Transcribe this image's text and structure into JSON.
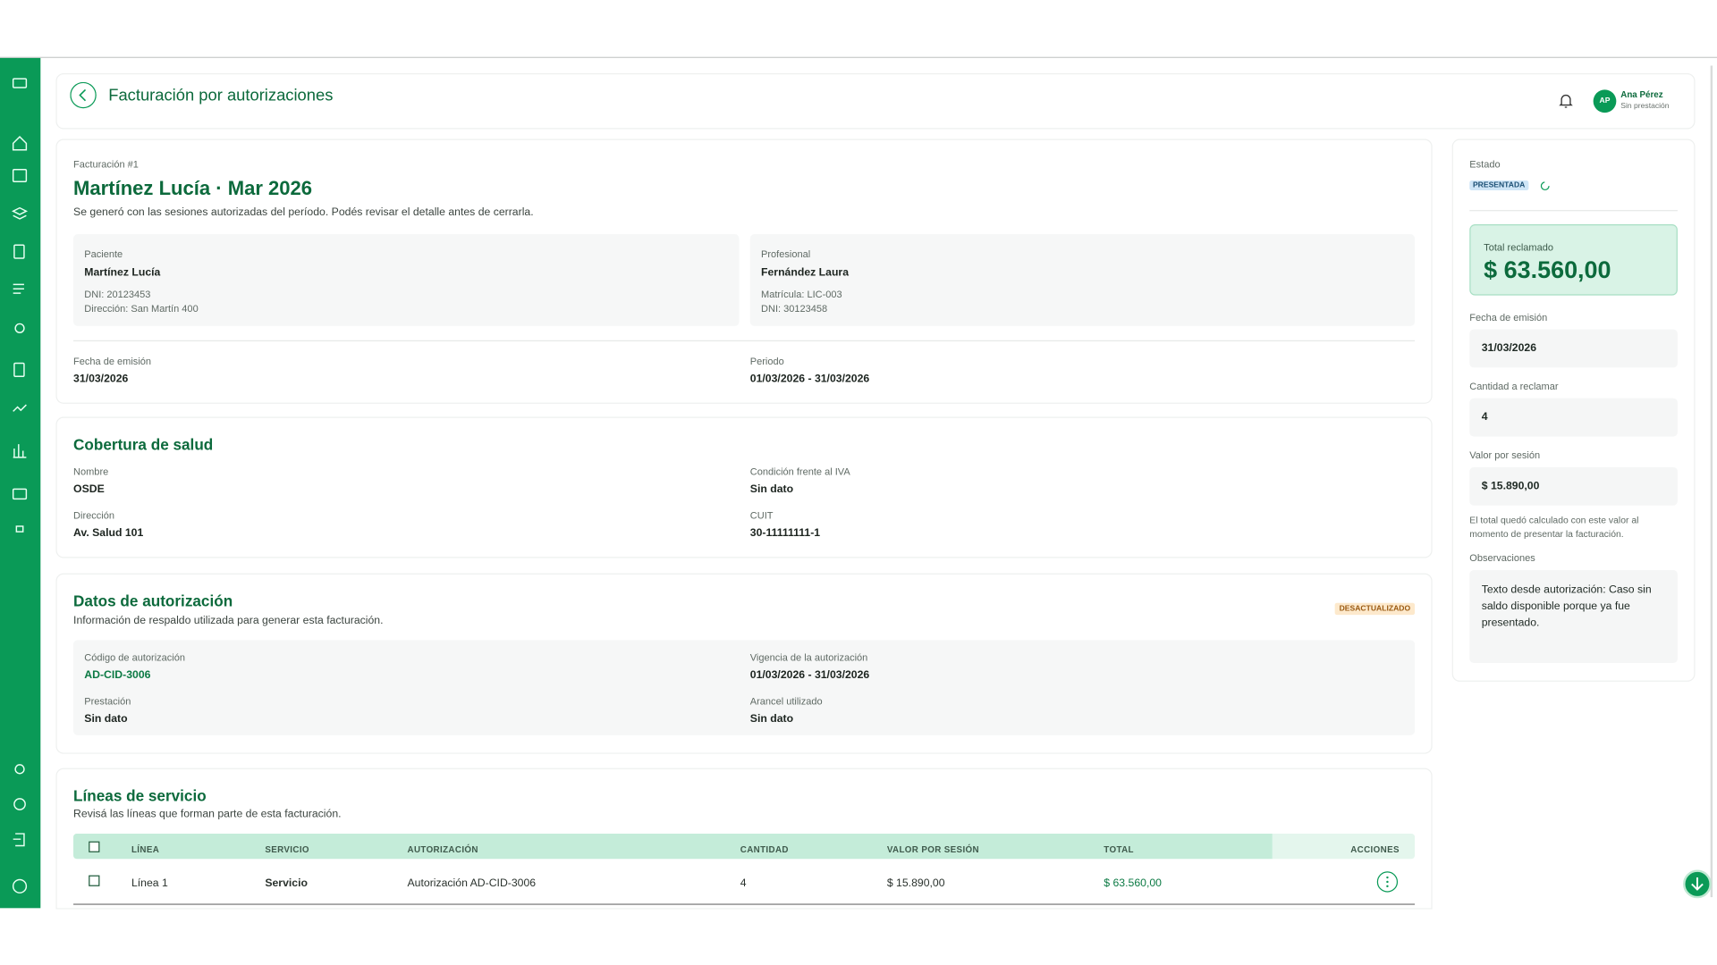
{
  "header": {
    "title": "Facturación por autorizaciones",
    "user": {
      "initials": "AP",
      "name": "Ana Pérez",
      "role": "Sin prestación"
    }
  },
  "invoice": {
    "label": "Facturación #1",
    "title": "Martínez Lucía · Mar 2026",
    "subtitle": "Se generó con las sesiones autorizadas del período. Podés revisar el detalle antes de cerrarla.",
    "patient": {
      "heading": "Paciente",
      "name": "Martínez Lucía",
      "lines": [
        "DNI: 20123453",
        "Dirección: San Martín 400"
      ]
    },
    "professional": {
      "heading": "Profesional",
      "name": "Fernández Laura",
      "lines": [
        "Matrícula: LIC-003",
        "DNI: 30123458"
      ]
    },
    "fields": [
      {
        "label": "Fecha de emisión",
        "value": "31/03/2026"
      },
      {
        "label": "Periodo",
        "value": "01/03/2026 - 31/03/2026"
      }
    ]
  },
  "coverage": {
    "title": "Cobertura de salud",
    "fields": [
      {
        "label": "Nombre",
        "value": "OSDE"
      },
      {
        "label": "Condición frente al IVA",
        "value": "Sin dato"
      },
      {
        "label": "Dirección",
        "value": "Av. Salud 101"
      },
      {
        "label": "CUIT",
        "value": "30-11111111-1"
      }
    ]
  },
  "authorization": {
    "title": "Datos de autorización",
    "subtitle": "Información de respaldo utilizada para generar esta facturación.",
    "badge": "DESACTUALIZADO",
    "fields": [
      {
        "label": "Código de autorización",
        "value": "AD-CID-3006"
      },
      {
        "label": "Vigencia de la autorización",
        "value": "01/03/2026 - 31/03/2026"
      },
      {
        "label": "Prestación",
        "value": "Sin dato"
      },
      {
        "label": "Arancel utilizado",
        "value": "Sin dato"
      }
    ]
  },
  "service_lines": {
    "title": "Líneas de servicio",
    "subtitle": "Revisá las líneas que forman parte de esta facturación.",
    "columns": [
      "LÍNEA",
      "SERVICIO",
      "AUTORIZACIÓN",
      "CANTIDAD",
      "VALOR POR SESIÓN",
      "TOTAL",
      "ACCIONES"
    ],
    "rows": [
      [
        "Línea 1",
        "Servicio",
        "Autorización AD-CID-3006",
        "4",
        "$ 15.890,00",
        "$ 63.560,00"
      ]
    ]
  },
  "status_panel": {
    "label": "Estado",
    "badge": "PRESENTADA",
    "total_label": "Total reclamado",
    "total": "$ 63.560,00",
    "fields": [
      {
        "label": "Fecha de emisión",
        "value": "31/03/2026"
      },
      {
        "label": "Cantidad a reclamar",
        "value": "4"
      },
      {
        "label": "Valor por sesión",
        "value": "$ 15.890,00"
      }
    ],
    "note": "El total quedó calculado con este valor al momento de presentar la facturación.",
    "observations_label": "Observaciones",
    "observations": "Texto desde autorización: Caso sin saldo disponible porque ya fue presentado."
  }
}
